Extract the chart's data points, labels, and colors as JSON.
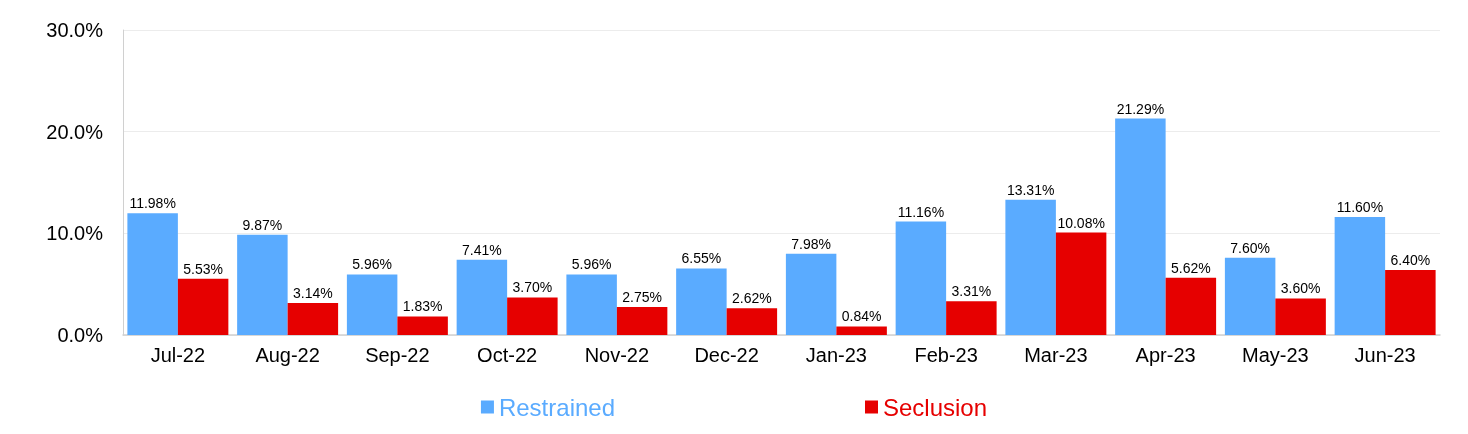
{
  "chart_data": {
    "type": "bar",
    "categories": [
      "Jul-22",
      "Aug-22",
      "Sep-22",
      "Oct-22",
      "Nov-22",
      "Dec-22",
      "Jan-23",
      "Feb-23",
      "Mar-23",
      "Apr-23",
      "May-23",
      "Jun-23"
    ],
    "series": [
      {
        "name": "Restrained",
        "color": "#5aabff",
        "values": [
          11.98,
          9.87,
          5.96,
          7.41,
          5.96,
          6.55,
          7.98,
          11.16,
          13.31,
          21.29,
          7.6,
          11.6
        ],
        "value_labels": [
          "11.98%",
          "9.87%",
          "5.96%",
          "7.41%",
          "5.96%",
          "6.55%",
          "7.98%",
          "11.16%",
          "13.31%",
          "21.29%",
          "7.60%",
          "11.60%"
        ]
      },
      {
        "name": "Seclusion",
        "color": "#e60000",
        "values": [
          5.53,
          3.14,
          1.83,
          3.7,
          2.75,
          2.62,
          0.84,
          3.31,
          10.08,
          5.62,
          3.6,
          6.4
        ],
        "value_labels": [
          "5.53%",
          "3.14%",
          "1.83%",
          "3.70%",
          "2.75%",
          "2.62%",
          "0.84%",
          "3.31%",
          "10.08%",
          "5.62%",
          "3.60%",
          "6.40%"
        ]
      }
    ],
    "ylim": [
      0,
      30
    ],
    "yticks": [
      {
        "value": 0,
        "label": "0.0%"
      },
      {
        "value": 10,
        "label": "10.0%"
      },
      {
        "value": 20,
        "label": "20.0%"
      },
      {
        "value": 30,
        "label": "30.0%"
      }
    ],
    "grid": "y",
    "legend": "bottom"
  }
}
